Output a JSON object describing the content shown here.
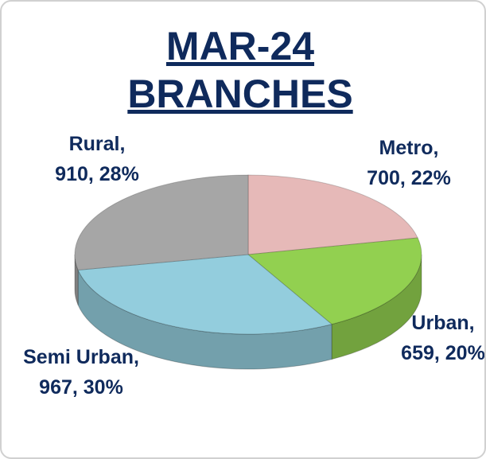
{
  "chart_data": {
    "type": "pie",
    "title": "MAR-24 BRANCHES",
    "categories": [
      "Metro",
      "Urban",
      "Semi Urban",
      "Rural"
    ],
    "values": [
      700,
      659,
      967,
      910
    ],
    "value_labels": [
      "Metro, 700, 22%",
      "Urban, 659, 20%",
      "Semi Urban, 967, 30%",
      "Rural, 910, 28%"
    ],
    "colors": [
      "#e6b9b8",
      "#92d050",
      "#93cddd",
      "#a6a6a6"
    ]
  }
}
